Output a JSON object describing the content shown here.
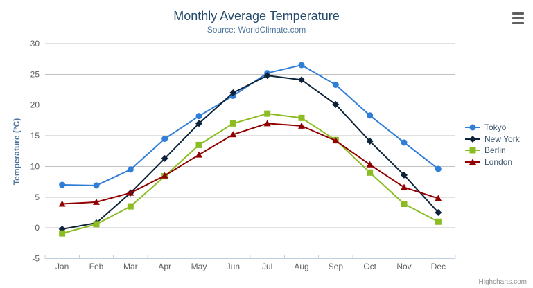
{
  "chart": {
    "title": "Monthly Average Temperature",
    "subtitle": "Source: WorldClimate.com",
    "credits": "Highcharts.com",
    "context_button_icon": "hamburger-menu-icon"
  },
  "chart_data": {
    "type": "line",
    "title": "Monthly Average Temperature",
    "subtitle": "Source: WorldClimate.com",
    "xlabel": "",
    "ylabel": "Temperature (°C)",
    "categories": [
      "Jan",
      "Feb",
      "Mar",
      "Apr",
      "May",
      "Jun",
      "Jul",
      "Aug",
      "Sep",
      "Oct",
      "Nov",
      "Dec"
    ],
    "ylim": [
      -5,
      30
    ],
    "yticks": [
      -5,
      0,
      5,
      10,
      15,
      20,
      25,
      30
    ],
    "grid": "horizontal",
    "legend_position": "right",
    "series": [
      {
        "name": "Tokyo",
        "marker": "circle",
        "color": "#2f7ed8",
        "values": [
          7.0,
          6.9,
          9.5,
          14.5,
          18.2,
          21.5,
          25.2,
          26.5,
          23.3,
          18.3,
          13.9,
          9.6
        ]
      },
      {
        "name": "New York",
        "marker": "diamond",
        "color": "#0d233a",
        "values": [
          -0.2,
          0.8,
          5.7,
          11.3,
          17.0,
          22.0,
          24.8,
          24.1,
          20.1,
          14.1,
          8.6,
          2.5
        ]
      },
      {
        "name": "Berlin",
        "marker": "square",
        "color": "#8bbc21",
        "values": [
          -0.9,
          0.6,
          3.5,
          8.4,
          13.5,
          17.0,
          18.6,
          17.9,
          14.3,
          9.0,
          3.9,
          1.0
        ]
      },
      {
        "name": "London",
        "marker": "triangle",
        "color": "#910000",
        "values": [
          3.9,
          4.2,
          5.7,
          8.5,
          11.9,
          15.2,
          17.0,
          16.6,
          14.2,
          10.3,
          6.6,
          4.8
        ]
      }
    ],
    "colors": {
      "title": "#274b6d",
      "subtitle": "#4d759e",
      "axis_title": "#4d759e",
      "axis_label": "#606060",
      "grid_line": "#c0c0c0",
      "axis_line": "#c0d0e0",
      "legend_text": "#3E576F",
      "credits": "#909090",
      "menu_icon": "#606060",
      "background": "#ffffff"
    }
  }
}
